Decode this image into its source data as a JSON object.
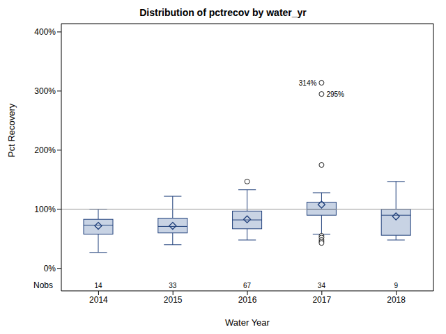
{
  "chart_data": {
    "type": "boxplot",
    "title": "Distribution of pctrecov by water_yr",
    "x_label": "Water Year",
    "y_label": "Pct Recovery",
    "categories": [
      "2014",
      "2015",
      "2016",
      "2017",
      "2018"
    ],
    "min": [
      27,
      40,
      48,
      58,
      48
    ],
    "q1": [
      58,
      60,
      67,
      90,
      56
    ],
    "median": [
      73,
      71,
      82,
      100,
      90
    ],
    "q3": [
      83,
      85,
      97,
      112,
      100
    ],
    "max": [
      100,
      122,
      133,
      128,
      147
    ],
    "mean": [
      72,
      72,
      83,
      108,
      88
    ],
    "outliers": [
      [],
      [],
      [
        147
      ],
      [
        314,
        295,
        175,
        55,
        52,
        48,
        45,
        43
      ],
      []
    ],
    "outlier_labels": [
      [],
      [],
      [
        null
      ],
      [
        "314%",
        "295%",
        null,
        null,
        null,
        null,
        null,
        null
      ],
      []
    ],
    "nobs_label": "Nobs",
    "nobs": [
      14,
      33,
      67,
      34,
      9
    ],
    "color": "#c8d3e4",
    "reference_line": 100,
    "ylim": [
      -38,
      414
    ],
    "yticks": [
      {
        "value": 0,
        "label": "0%"
      },
      {
        "value": 100,
        "label": "100%"
      },
      {
        "value": 200,
        "label": "200%"
      },
      {
        "value": 300,
        "label": "300%"
      },
      {
        "value": 400,
        "label": "400%"
      }
    ],
    "grid": false
  }
}
